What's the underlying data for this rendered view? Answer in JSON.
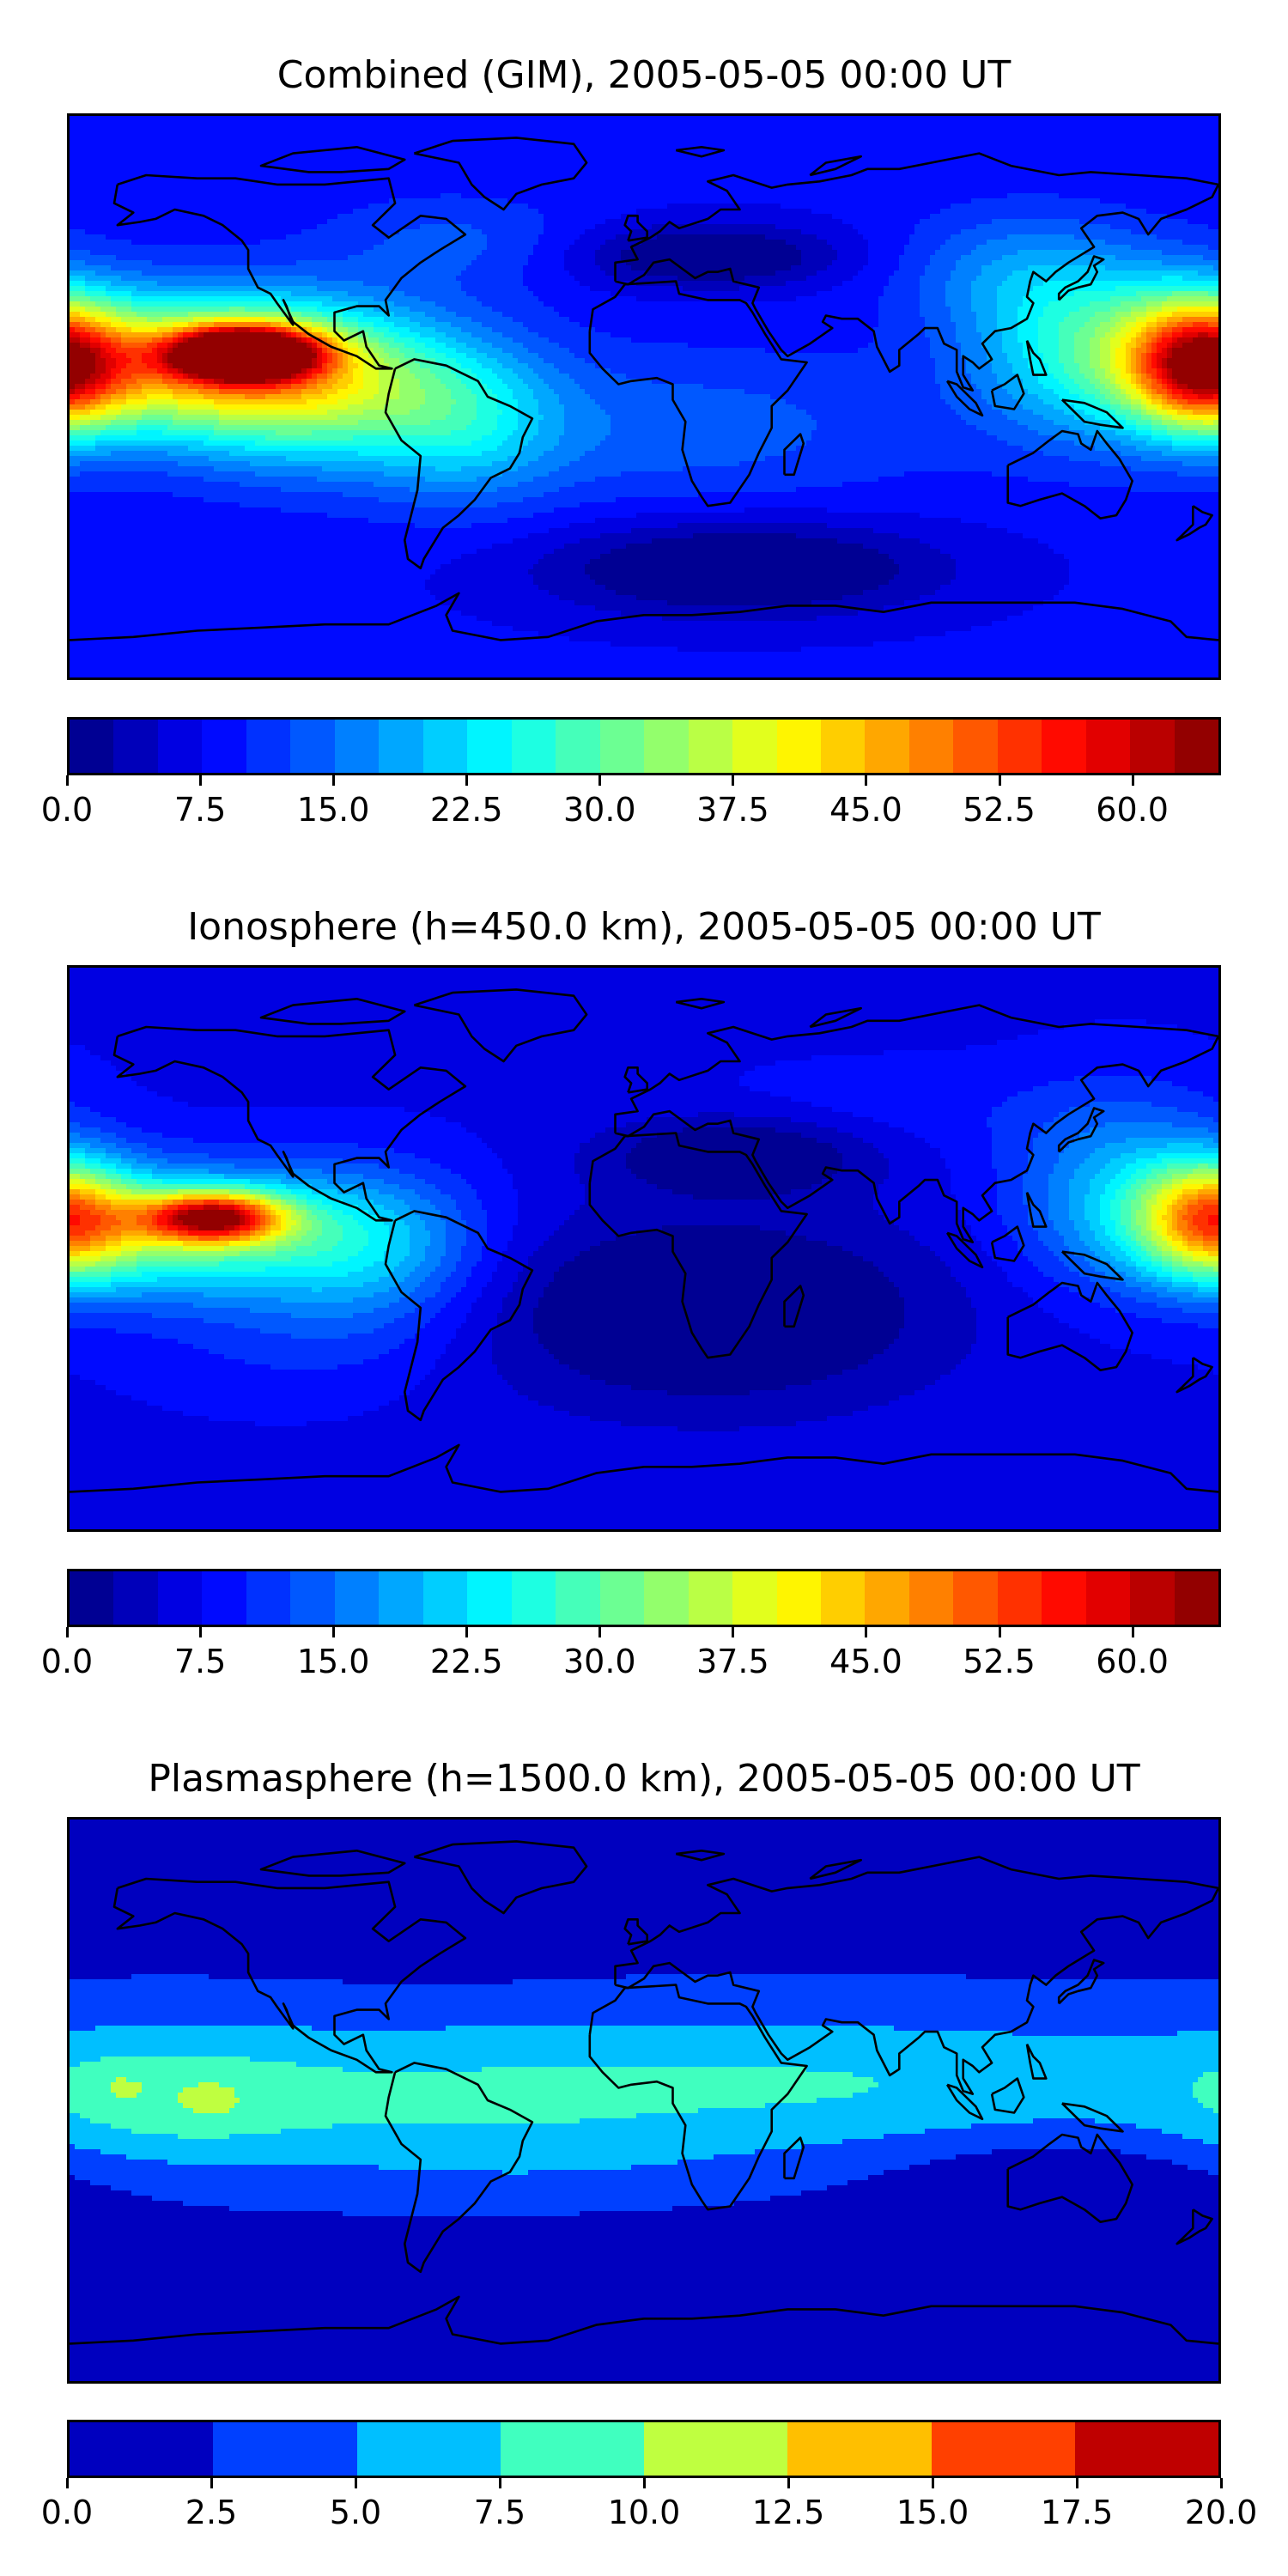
{
  "panels": [
    {
      "title": "Combined (GIM), 2005-05-05 00:00 UT",
      "colorbar": {
        "min": 0.0,
        "max": 65.0,
        "levels": 26,
        "colormap": "jet",
        "ticks": [
          "0.0",
          "7.5",
          "15.0",
          "22.5",
          "30.0",
          "37.5",
          "45.0",
          "52.5",
          "60.0"
        ],
        "tick_values": [
          0.0,
          7.5,
          15.0,
          22.5,
          30.0,
          37.5,
          45.0,
          52.5,
          60.0
        ]
      },
      "field": {
        "background": 8,
        "features": [
          {
            "lon": -125,
            "lat": 14,
            "value": 62,
            "rlon": 22,
            "rlat": 8
          },
          {
            "lon": -140,
            "lat": 10,
            "value": 40,
            "rlon": 55,
            "rlat": 22
          },
          {
            "lon": -100,
            "lat": 2,
            "value": 25,
            "rlon": 45,
            "rlat": 25
          },
          {
            "lon": -55,
            "lat": -8,
            "value": 18,
            "rlon": 30,
            "rlat": 25
          },
          {
            "lon": 175,
            "lat": 10,
            "value": 44,
            "rlon": 22,
            "rlat": 20
          },
          {
            "lon": 145,
            "lat": 15,
            "value": 26,
            "rlon": 40,
            "rlat": 28
          },
          {
            "lon": 115,
            "lat": 40,
            "value": 15,
            "rlon": 35,
            "rlat": 20
          },
          {
            "lon": 10,
            "lat": -10,
            "value": 14,
            "rlon": 80,
            "rlat": 25
          },
          {
            "lon": -60,
            "lat": 50,
            "value": 13,
            "rlon": 40,
            "rlat": 15
          },
          {
            "lon": 30,
            "lat": -55,
            "value": -3,
            "rlon": 60,
            "rlat": 15
          },
          {
            "lon": 20,
            "lat": 45,
            "value": -2,
            "rlon": 40,
            "rlat": 10
          }
        ]
      }
    },
    {
      "title": "Ionosphere  (h=450.0 km), 2005-05-05 00:00 UT",
      "colorbar": {
        "min": 0.0,
        "max": 65.0,
        "levels": 26,
        "colormap": "jet",
        "ticks": [
          "0.0",
          "7.5",
          "15.0",
          "22.5",
          "30.0",
          "37.5",
          "45.0",
          "52.5",
          "60.0"
        ],
        "tick_values": [
          0.0,
          7.5,
          15.0,
          22.5,
          30.0,
          37.5,
          45.0,
          52.5,
          60.0
        ]
      },
      "field": {
        "background": 7,
        "features": [
          {
            "lon": -135,
            "lat": 10,
            "value": 46,
            "rlon": 22,
            "rlat": 8
          },
          {
            "lon": -145,
            "lat": 5,
            "value": 30,
            "rlon": 55,
            "rlat": 20
          },
          {
            "lon": -85,
            "lat": 0,
            "value": 18,
            "rlon": 35,
            "rlat": 25
          },
          {
            "lon": 178,
            "lat": 10,
            "value": 36,
            "rlon": 22,
            "rlat": 18
          },
          {
            "lon": 150,
            "lat": 20,
            "value": 18,
            "rlon": 35,
            "rlat": 30
          },
          {
            "lon": 20,
            "lat": -20,
            "value": -3,
            "rlon": 70,
            "rlat": 30
          },
          {
            "lon": 30,
            "lat": 30,
            "value": -2,
            "rlon": 40,
            "rlat": 12
          },
          {
            "lon": -110,
            "lat": -30,
            "value": 10,
            "rlon": 50,
            "rlat": 20
          },
          {
            "lon": 80,
            "lat": 45,
            "value": 9,
            "rlon": 60,
            "rlat": 15
          }
        ]
      }
    },
    {
      "title": "Plasmasphere (h=1500.0 km), 2005-05-05 00:00 UT",
      "colorbar": {
        "min": 0.0,
        "max": 20.0,
        "levels": 8,
        "colormap": "jet",
        "ticks": [
          "0.0",
          "2.5",
          "5.0",
          "7.5",
          "10.0",
          "12.5",
          "15.0",
          "17.5",
          "20.0"
        ],
        "tick_values": [
          0.0,
          2.5,
          5.0,
          7.5,
          10.0,
          12.5,
          15.0,
          17.5,
          20.0
        ]
      },
      "field": {
        "background": 1.6,
        "features": [
          {
            "lon": 0,
            "lat": 5,
            "value": 5.4,
            "rlon": 999,
            "rlat": 28
          },
          {
            "lon": -150,
            "lat": 0,
            "value": 5.0,
            "rlon": 45,
            "rlat": 20
          },
          {
            "lon": -70,
            "lat": -5,
            "value": 3.8,
            "rlon": 80,
            "rlat": 25
          },
          {
            "lon": 50,
            "lat": 5,
            "value": 3.8,
            "rlon": 100,
            "rlat": 20
          },
          {
            "lon": -20,
            "lat": -20,
            "value": 2.5,
            "rlon": 60,
            "rlat": 12
          },
          {
            "lon": -165,
            "lat": 5,
            "value": 3.0,
            "rlon": 10,
            "rlat": 6
          },
          {
            "lon": -135,
            "lat": 0,
            "value": 3.0,
            "rlon": 10,
            "rlat": 7
          },
          {
            "lon": -65,
            "lat": 52,
            "value": -0.6,
            "rlon": 40,
            "rlat": 10
          },
          {
            "lon": 130,
            "lat": -30,
            "value": -1.6,
            "rlon": 50,
            "rlat": 20
          }
        ]
      }
    }
  ]
}
